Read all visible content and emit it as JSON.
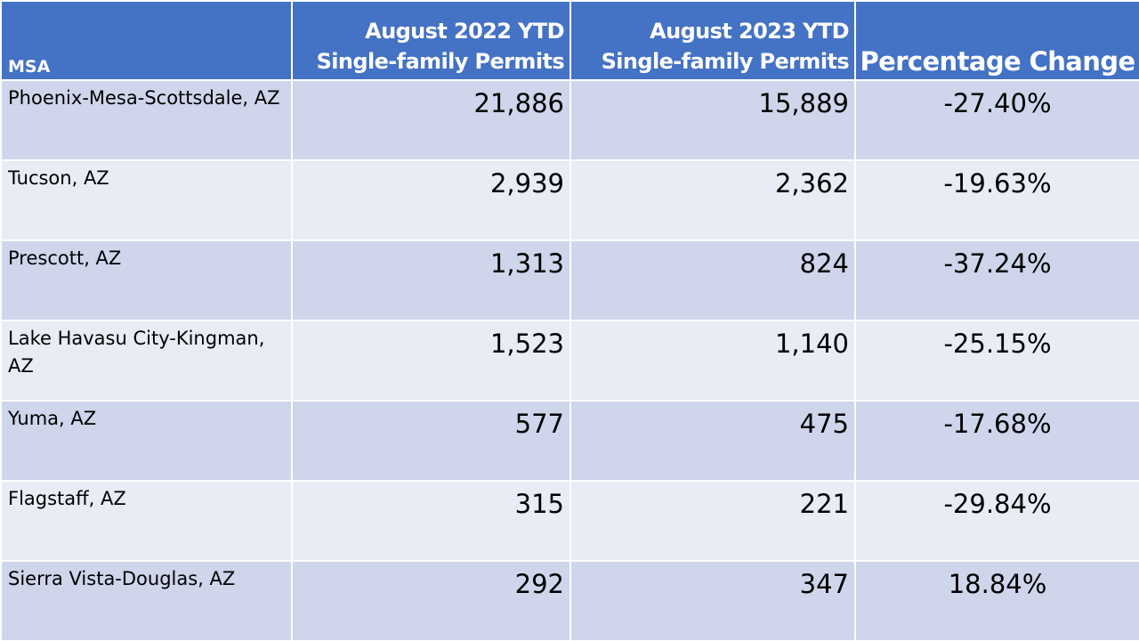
{
  "table": {
    "headers": {
      "msa": "MSA",
      "y2022_line1": "August 2022 YTD",
      "y2022_line2": "Single-family Permits",
      "y2023_line1": "August 2023 YTD",
      "y2023_line2": "Single-family Permits",
      "pct": "Percentage Change"
    },
    "rows": [
      {
        "msa": "Phoenix-Mesa-Scottsdale, AZ",
        "y2022": "21,886",
        "y2023": "15,889",
        "pct": "-27.40%"
      },
      {
        "msa": "Tucson, AZ",
        "y2022": "2,939",
        "y2023": "2,362",
        "pct": "-19.63%"
      },
      {
        "msa": "Prescott, AZ",
        "y2022": "1,313",
        "y2023": "824",
        "pct": "-37.24%"
      },
      {
        "msa": "Lake Havasu City-Kingman, AZ",
        "y2022": "1,523",
        "y2023": "1,140",
        "pct": "-25.15%"
      },
      {
        "msa": "Yuma, AZ",
        "y2022": "577",
        "y2023": "475",
        "pct": "-17.68%"
      },
      {
        "msa": "Flagstaff, AZ",
        "y2022": "315",
        "y2023": "221",
        "pct": "-29.84%"
      },
      {
        "msa": "Sierra Vista-Douglas, AZ",
        "y2022": "292",
        "y2023": "347",
        "pct": "18.84%"
      }
    ],
    "colors": {
      "header_bg": "#4472c4",
      "row_band_dark": "#cfd5ea",
      "row_band_light": "#e9ebf5"
    }
  }
}
